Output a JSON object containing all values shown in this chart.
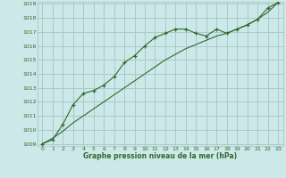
{
  "x_data": [
    0,
    1,
    2,
    3,
    4,
    5,
    6,
    7,
    8,
    9,
    10,
    11,
    12,
    13,
    14,
    15,
    16,
    17,
    18,
    19,
    20,
    21,
    22,
    23
  ],
  "y_line1": [
    1009.0,
    1009.3,
    1010.4,
    1011.8,
    1012.6,
    1012.8,
    1013.2,
    1013.8,
    1014.8,
    1015.3,
    1016.0,
    1016.6,
    1016.9,
    1017.2,
    1017.2,
    1016.9,
    1016.7,
    1017.2,
    1016.9,
    1017.2,
    1017.5,
    1017.9,
    1018.7,
    1019.1
  ],
  "y_line2": [
    1009.0,
    1009.4,
    1009.9,
    1010.5,
    1011.0,
    1011.5,
    1012.0,
    1012.5,
    1013.0,
    1013.5,
    1014.0,
    1014.5,
    1015.0,
    1015.4,
    1015.8,
    1016.1,
    1016.4,
    1016.7,
    1016.9,
    1017.2,
    1017.5,
    1017.9,
    1018.4,
    1019.1
  ],
  "line_color": "#2d6a2d",
  "bg_color": "#cce8e8",
  "grid_color": "#aacaca",
  "xlabel": "Graphe pression niveau de la mer (hPa)",
  "ylim": [
    1009,
    1019
  ],
  "xlim": [
    0,
    23
  ],
  "yticks": [
    1009,
    1010,
    1011,
    1012,
    1013,
    1014,
    1015,
    1016,
    1017,
    1018,
    1019
  ],
  "xticks": [
    0,
    1,
    2,
    3,
    4,
    5,
    6,
    7,
    8,
    9,
    10,
    11,
    12,
    13,
    14,
    15,
    16,
    17,
    18,
    19,
    20,
    21,
    22,
    23
  ],
  "tick_fontsize": 4.5,
  "xlabel_fontsize": 5.5
}
